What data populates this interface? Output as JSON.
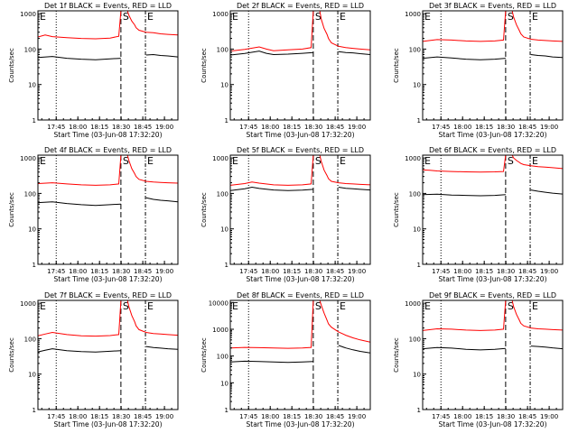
{
  "colors": {
    "events": "#000000",
    "lld": "#ff0000",
    "frame": "#000000",
    "background": "#ffffff"
  },
  "shared": {
    "xlabel": "Start Time (03-Jun-08 17:32:20)",
    "ylabel": "Counts/sec",
    "x_unit": "minutes after 17:32:20",
    "xticks": [
      {
        "label": "17:45",
        "x": 12.67
      },
      {
        "label": "18:00",
        "x": 27.67
      },
      {
        "label": "18:15",
        "x": 42.67
      },
      {
        "label": "18:30",
        "x": 57.67
      },
      {
        "label": "18:45",
        "x": 72.67
      },
      {
        "label": "19:00",
        "x": 87.67
      }
    ],
    "xlim": [
      0,
      97
    ],
    "yscale": "log",
    "yticks_small": [
      {
        "label": "1",
        "v": 1
      },
      {
        "label": "10",
        "v": 10
      },
      {
        "label": "100",
        "v": 100
      },
      {
        "label": "1000",
        "v": 1000
      }
    ],
    "yticks_large": [
      {
        "label": "1",
        "v": 1
      },
      {
        "label": "10",
        "v": 10
      },
      {
        "label": "100",
        "v": 100
      },
      {
        "label": "1000",
        "v": 1000
      },
      {
        "label": "10000",
        "v": 10000
      }
    ],
    "marker_e": "E",
    "marker_s": "S",
    "dotted_line_x": 12.67,
    "dashed_line_x": 57.5,
    "dashdot_line_x": 74.5
  },
  "chart_data": [
    {
      "type": "line",
      "title": "Det 1f BLACK = Events, RED = LLD",
      "ylim": [
        1,
        1200
      ],
      "lld": {
        "name": "LLD",
        "x": [
          0,
          5,
          10,
          20,
          30,
          40,
          50,
          56,
          57.5
        ],
        "y": [
          220,
          250,
          225,
          210,
          200,
          195,
          205,
          230,
          1200
        ]
      },
      "lld_after": {
        "x": [
          62,
          63,
          65,
          67,
          68,
          70,
          75,
          80,
          85,
          90,
          97
        ],
        "y": [
          1200,
          900,
          620,
          480,
          400,
          340,
          300,
          290,
          270,
          260,
          250
        ]
      },
      "events": {
        "name": "Events",
        "x": [
          0,
          10,
          20,
          30,
          40,
          50,
          57.5
        ],
        "y": [
          58,
          62,
          55,
          52,
          50,
          53,
          55
        ]
      },
      "events_after": {
        "x": [
          75,
          80,
          85,
          90,
          97
        ],
        "y": [
          68,
          70,
          66,
          64,
          60
        ]
      }
    },
    {
      "type": "line",
      "title": "Det 2f BLACK = Events, RED = LLD",
      "ylim": [
        1,
        1200
      ],
      "lld": {
        "name": "LLD",
        "x": [
          0,
          10,
          20,
          25,
          30,
          40,
          50,
          56,
          57.5
        ],
        "y": [
          88,
          98,
          115,
          100,
          90,
          95,
          100,
          110,
          1200
        ]
      },
      "lld_after": {
        "x": [
          62,
          63,
          65,
          67,
          68,
          70,
          75,
          80,
          85,
          90,
          97
        ],
        "y": [
          1200,
          700,
          380,
          260,
          200,
          150,
          120,
          110,
          105,
          100,
          95
        ]
      },
      "events": {
        "name": "Events",
        "x": [
          0,
          10,
          20,
          25,
          30,
          40,
          50,
          57.5
        ],
        "y": [
          68,
          75,
          88,
          76,
          70,
          72,
          76,
          80
        ]
      },
      "events_after": {
        "x": [
          75,
          80,
          85,
          90,
          97
        ],
        "y": [
          85,
          80,
          78,
          74,
          70
        ]
      }
    },
    {
      "type": "line",
      "title": "Det 3f BLACK = Events, RED = LLD",
      "ylim": [
        1,
        1200
      ],
      "lld": {
        "name": "LLD",
        "x": [
          0,
          10,
          20,
          30,
          40,
          50,
          56,
          57.5
        ],
        "y": [
          165,
          185,
          180,
          170,
          165,
          170,
          180,
          1200
        ]
      },
      "lld_after": {
        "x": [
          62,
          63,
          65,
          67,
          68,
          70,
          75,
          80,
          85,
          90,
          97
        ],
        "y": [
          1200,
          800,
          480,
          330,
          270,
          220,
          190,
          180,
          175,
          170,
          165
        ]
      },
      "events": {
        "name": "Events",
        "x": [
          0,
          10,
          20,
          30,
          40,
          50,
          57.5
        ],
        "y": [
          55,
          60,
          56,
          52,
          50,
          52,
          55
        ]
      },
      "events_after": {
        "x": [
          75,
          80,
          85,
          90,
          97
        ],
        "y": [
          70,
          66,
          64,
          60,
          58
        ]
      }
    },
    {
      "type": "line",
      "title": "Det 4f BLACK = Events, RED = LLD",
      "ylim": [
        1,
        1200
      ],
      "lld": {
        "name": "LLD",
        "x": [
          0,
          10,
          20,
          30,
          40,
          50,
          56,
          57.5
        ],
        "y": [
          190,
          200,
          185,
          175,
          170,
          175,
          185,
          1200
        ]
      },
      "lld_after": {
        "x": [
          62,
          63,
          65,
          67,
          68,
          70,
          75,
          80,
          85,
          90,
          97
        ],
        "y": [
          1200,
          850,
          500,
          360,
          300,
          250,
          220,
          210,
          205,
          200,
          195
        ]
      },
      "events": {
        "name": "Events",
        "x": [
          0,
          10,
          20,
          30,
          40,
          50,
          57.5
        ],
        "y": [
          55,
          58,
          52,
          48,
          46,
          48,
          50
        ]
      },
      "events_after": {
        "x": [
          75,
          80,
          85,
          90,
          97
        ],
        "y": [
          75,
          68,
          64,
          62,
          58
        ]
      }
    },
    {
      "type": "line",
      "title": "Det 5f BLACK = Events, RED = LLD",
      "ylim": [
        1,
        1200
      ],
      "lld": {
        "name": "LLD",
        "x": [
          0,
          10,
          15,
          20,
          30,
          40,
          50,
          56,
          57.5
        ],
        "y": [
          170,
          190,
          210,
          195,
          175,
          170,
          175,
          185,
          1200
        ]
      },
      "lld_after": {
        "x": [
          62,
          63,
          65,
          67,
          68,
          70,
          75,
          80,
          85,
          90,
          97
        ],
        "y": [
          1200,
          800,
          450,
          320,
          260,
          220,
          200,
          190,
          185,
          180,
          175
        ]
      },
      "events": {
        "name": "Events",
        "x": [
          0,
          10,
          15,
          20,
          30,
          40,
          50,
          57.5
        ],
        "y": [
          120,
          135,
          150,
          138,
          125,
          120,
          124,
          130
        ]
      },
      "events_after": {
        "x": [
          75,
          80,
          85,
          90,
          97
        ],
        "y": [
          150,
          140,
          135,
          130,
          125
        ]
      }
    },
    {
      "type": "line",
      "title": "Det 6f BLACK = Events, RED = LLD",
      "ylim": [
        1,
        1200
      ],
      "lld": {
        "name": "LLD",
        "x": [
          0,
          5,
          10,
          20,
          30,
          40,
          50,
          56,
          57.5
        ],
        "y": [
          460,
          450,
          430,
          415,
          405,
          400,
          405,
          415,
          1200
        ]
      },
      "lld_after": {
        "x": [
          62,
          63,
          65,
          67,
          68,
          70,
          75,
          80,
          85,
          90,
          97
        ],
        "y": [
          1200,
          1000,
          850,
          750,
          700,
          650,
          600,
          570,
          550,
          530,
          500
        ]
      },
      "events": {
        "name": "Events",
        "x": [
          0,
          10,
          20,
          30,
          40,
          50,
          57.5
        ],
        "y": [
          92,
          95,
          90,
          88,
          86,
          88,
          92
        ]
      },
      "events_after": {
        "x": [
          75,
          80,
          85,
          90,
          97
        ],
        "y": [
          125,
          115,
          108,
          102,
          96
        ]
      }
    },
    {
      "type": "line",
      "title": "Det 7f BLACK = Events, RED = LLD",
      "ylim": [
        1,
        1200
      ],
      "lld": {
        "name": "LLD",
        "x": [
          0,
          5,
          10,
          20,
          30,
          40,
          50,
          56,
          57.5
        ],
        "y": [
          120,
          135,
          150,
          130,
          120,
          118,
          122,
          130,
          1200
        ]
      },
      "lld_after": {
        "x": [
          62,
          63,
          65,
          67,
          68,
          70,
          75,
          80,
          85,
          90,
          97
        ],
        "y": [
          1200,
          800,
          450,
          300,
          230,
          180,
          150,
          140,
          135,
          130,
          125
        ]
      },
      "events": {
        "name": "Events",
        "x": [
          0,
          5,
          10,
          20,
          30,
          40,
          50,
          57.5
        ],
        "y": [
          42,
          47,
          52,
          46,
          43,
          42,
          44,
          46
        ]
      },
      "events_after": {
        "x": [
          75,
          80,
          85,
          90,
          97
        ],
        "y": [
          60,
          56,
          54,
          52,
          50
        ]
      }
    },
    {
      "type": "line",
      "title": "Det 8f BLACK = Events, RED = LLD",
      "ylim": [
        1,
        12000
      ],
      "lld": {
        "name": "LLD",
        "x": [
          0,
          10,
          20,
          30,
          40,
          50,
          56,
          57.5
        ],
        "y": [
          200,
          210,
          205,
          200,
          195,
          200,
          210,
          12000
        ]
      },
      "lld_after": {
        "x": [
          62,
          63,
          65,
          67,
          68,
          70,
          75,
          80,
          85,
          90,
          97
        ],
        "y": [
          12000,
          8000,
          4000,
          2200,
          1600,
          1200,
          800,
          600,
          480,
          400,
          330
        ]
      },
      "events": {
        "name": "Events",
        "x": [
          0,
          10,
          20,
          30,
          40,
          50,
          57.5
        ],
        "y": [
          60,
          64,
          62,
          60,
          58,
          60,
          62
        ]
      },
      "events_after": {
        "x": [
          75,
          80,
          85,
          90,
          97
        ],
        "y": [
          250,
          200,
          170,
          150,
          130
        ]
      }
    },
    {
      "type": "line",
      "title": "Det 9f BLACK = Events, RED = LLD",
      "ylim": [
        1,
        1200
      ],
      "lld": {
        "name": "LLD",
        "x": [
          0,
          10,
          20,
          30,
          40,
          50,
          56,
          57.5
        ],
        "y": [
          170,
          190,
          185,
          175,
          170,
          175,
          185,
          1200
        ]
      },
      "lld_after": {
        "x": [
          62,
          63,
          65,
          67,
          68,
          70,
          75,
          80,
          85,
          90,
          97
        ],
        "y": [
          1200,
          800,
          480,
          330,
          270,
          230,
          200,
          190,
          185,
          180,
          175
        ]
      },
      "events": {
        "name": "Events",
        "x": [
          0,
          10,
          20,
          30,
          40,
          50,
          57.5
        ],
        "y": [
          52,
          56,
          54,
          50,
          48,
          50,
          53
        ]
      },
      "events_after": {
        "x": [
          75,
          80,
          85,
          90,
          97
        ],
        "y": [
          62,
          60,
          58,
          55,
          52
        ]
      }
    }
  ]
}
